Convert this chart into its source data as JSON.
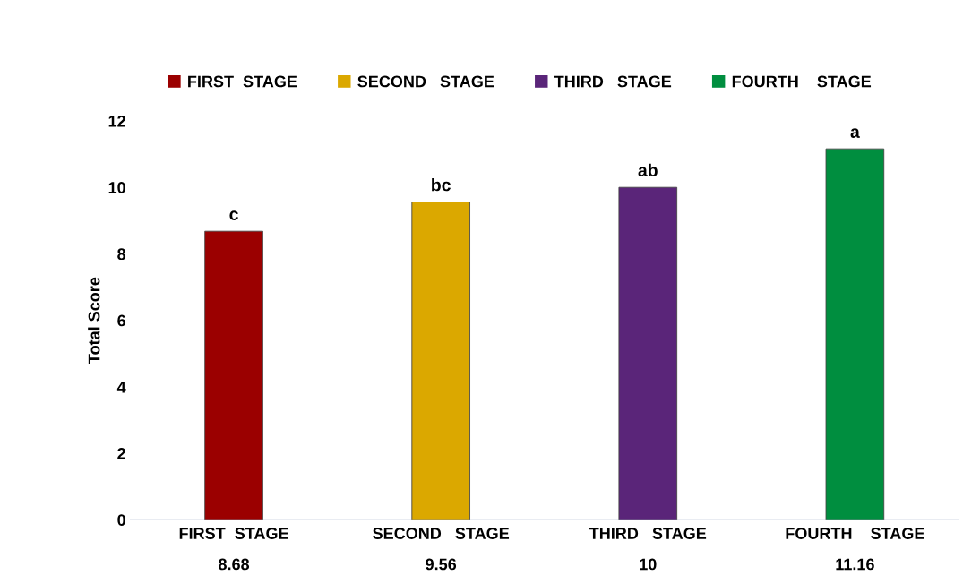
{
  "chart_data": {
    "type": "bar",
    "ylabel": "Total Score",
    "categories": [
      "FIRST  STAGE",
      "SECOND   STAGE",
      "THIRD   STAGE",
      "FOURTH    STAGE"
    ],
    "series": [
      {
        "name": "FIRST  STAGE",
        "color": "#9b0000",
        "values": [
          8.68,
          null,
          null,
          null
        ]
      },
      {
        "name": "SECOND   STAGE",
        "color": "#dba800",
        "values": [
          null,
          9.56,
          null,
          null
        ]
      },
      {
        "name": "THIRD   STAGE",
        "color": "#5a2579",
        "values": [
          null,
          null,
          10,
          null
        ]
      },
      {
        "name": "FOURTH    STAGE",
        "color": "#008e3f",
        "values": [
          null,
          null,
          null,
          11.16
        ]
      }
    ],
    "ylim": [
      0,
      12
    ],
    "yticks": [
      0,
      2,
      4,
      6,
      8,
      10,
      12
    ],
    "grid": false,
    "legend": "top",
    "data_labels": true,
    "annotations": [
      {
        "text": "c",
        "x": "FIRST  STAGE",
        "y": 8.68
      },
      {
        "text": "bc",
        "x": "SECOND   STAGE",
        "y": 9.56
      },
      {
        "text": "ab",
        "x": "THIRD   STAGE",
        "y": 10
      },
      {
        "text": "a",
        "x": "FOURTH    STAGE",
        "y": 11.16
      }
    ]
  }
}
